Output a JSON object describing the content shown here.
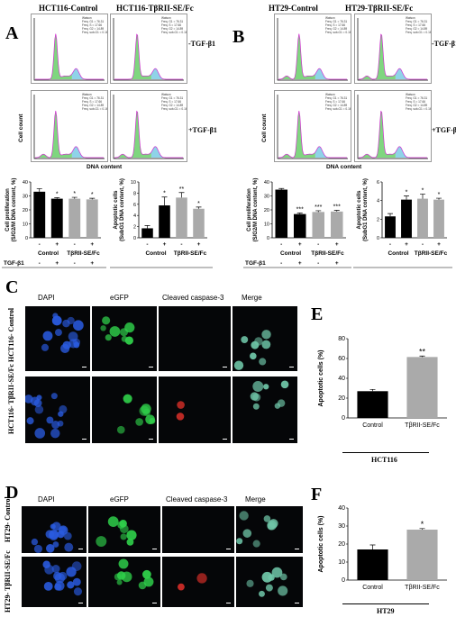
{
  "panel_letters": {
    "a": "A",
    "b": "B",
    "c": "C",
    "d": "D",
    "e": "E",
    "f": "F"
  },
  "flow": {
    "a_titles": [
      "HCT116-Control",
      "HCT116-TβRII-SE/Fc"
    ],
    "b_titles": [
      "HT29-Control",
      "HT29-TβRII-SE/Fc"
    ],
    "minus_label": "-TGF-β1",
    "plus_label": "+TGF-β1",
    "ylabel": "Cell count",
    "xlabel": "DNA content",
    "stat_lines": [
      "Watson",
      "Freq. G1 = 76.31",
      "Freq. S = 17.66",
      "Freq. G2 = 14.89",
      "Freq. sub-G1 = 0.16"
    ]
  },
  "bar_a_prolif": {
    "ylabel": "Cell proliferation\n(S/G2/M DNA content, %)",
    "yticks": [
      "0",
      "10",
      "20",
      "30",
      "40"
    ],
    "chart_data": {
      "type": "bar",
      "categories": [
        "Control -",
        "Control +",
        "TβRII-SE/Fc -",
        "TβRII-SE/Fc +"
      ],
      "values": [
        33,
        28,
        28,
        27.5
      ],
      "errors": [
        2.2,
        0.8,
        1,
        0.8
      ],
      "colors": [
        "#000000",
        "#000000",
        "#aaaaaa",
        "#aaaaaa"
      ],
      "sig": [
        "",
        "*",
        "*",
        "*"
      ],
      "ylim": [
        0,
        40
      ]
    }
  },
  "bar_a_apop": {
    "ylabel": "Apoptotic cells\n(SubG1 DNA content, %)",
    "yticks": [
      "0",
      "2",
      "4",
      "6",
      "8",
      "10"
    ],
    "chart_data": {
      "type": "bar",
      "categories": [
        "Control -",
        "Control +",
        "TβRII-SE/Fc -",
        "TβRII-SE/Fc +"
      ],
      "values": [
        1.7,
        5.8,
        7.2,
        5.2
      ],
      "errors": [
        0.5,
        1.5,
        0.9,
        0.3
      ],
      "colors": [
        "#000000",
        "#000000",
        "#aaaaaa",
        "#aaaaaa"
      ],
      "sig": [
        "",
        "*",
        "**",
        "*"
      ],
      "ylim": [
        0,
        10
      ]
    }
  },
  "bar_b_prolif": {
    "ylabel": "Cell proliferation\n(S/G2/M DNA content, %)",
    "yticks": [
      "0",
      "10",
      "20",
      "30",
      "40"
    ],
    "chart_data": {
      "type": "bar",
      "categories": [
        "Control -",
        "Control +",
        "TβRII-SE/Fc -",
        "TβRII-SE/Fc +"
      ],
      "values": [
        34.5,
        17,
        18.5,
        18.8
      ],
      "errors": [
        0.8,
        0.8,
        0.9,
        0.9
      ],
      "colors": [
        "#000000",
        "#000000",
        "#aaaaaa",
        "#aaaaaa"
      ],
      "sig": [
        "",
        "***",
        "***",
        "***"
      ],
      "ylim": [
        0,
        40
      ]
    }
  },
  "bar_b_apop": {
    "ylabel": "Apoptotic cells\n(SubG1 DNA content, %)",
    "yticks": [
      "0",
      "2",
      "4",
      "6"
    ],
    "chart_data": {
      "type": "bar",
      "categories": [
        "Control -",
        "Control +",
        "TβRII-SE/Fc -",
        "TβRII-SE/Fc +"
      ],
      "values": [
        2.3,
        4.1,
        4.2,
        4.1
      ],
      "errors": [
        0.3,
        0.4,
        0.5,
        0.15
      ],
      "colors": [
        "#000000",
        "#000000",
        "#aaaaaa",
        "#aaaaaa"
      ],
      "sig": [
        "",
        "*",
        "*",
        "*"
      ],
      "ylim": [
        0,
        6
      ]
    }
  },
  "group_labels": {
    "control": "Control",
    "fc": "TβRII-SE/Fc",
    "tgf": "TGF-β1",
    "minus": "-",
    "plus": "+"
  },
  "micro": {
    "channels": [
      "DAPI",
      "eGFP",
      "Cleaved caspase-3",
      "Merge"
    ],
    "channel_colors": [
      "#1f4fbf",
      "#1fae3a",
      "#d8262b",
      "#e08a3c"
    ],
    "c_rows": [
      "HCT116-\nControl",
      "HCT116-\nTβRII-SE/Fc"
    ],
    "d_rows": [
      "HT29-\nControl",
      "HT29-\nTβRII-SE/Fc"
    ]
  },
  "bar_e": {
    "ylabel": "Apoptotic cells (%)",
    "yticks": [
      "0",
      "20",
      "40",
      "60",
      "80"
    ],
    "caption": "HCT116",
    "chart_data": {
      "type": "bar",
      "categories": [
        "Control",
        "TβRII-SE/Fc"
      ],
      "values": [
        27,
        61.5
      ],
      "errors": [
        1.8,
        1.0
      ],
      "colors": [
        "#000000",
        "#aaaaaa"
      ],
      "sig": [
        "",
        "**"
      ],
      "ylim": [
        0,
        80
      ]
    }
  },
  "bar_f": {
    "ylabel": "Apoptotic cells (%)",
    "yticks": [
      "0",
      "10",
      "20",
      "30",
      "40"
    ],
    "caption": "HT29",
    "chart_data": {
      "type": "bar",
      "categories": [
        "Control",
        "TβRII-SE/Fc"
      ],
      "values": [
        17,
        28
      ],
      "errors": [
        2.5,
        0.6
      ],
      "colors": [
        "#000000",
        "#aaaaaa"
      ],
      "sig": [
        "",
        "*"
      ],
      "ylim": [
        0,
        40
      ]
    }
  }
}
